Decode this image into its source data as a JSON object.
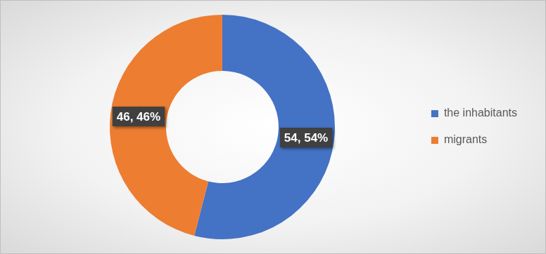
{
  "chart_data": {
    "type": "doughnut",
    "categories": [
      "the inhabitants",
      "migrants"
    ],
    "values": [
      54,
      46
    ],
    "value_labels": [
      "54, 54%",
      "46, 46%"
    ],
    "colors": [
      "#4472c4",
      "#ed7d31"
    ],
    "data_labels": true,
    "legend": "right"
  }
}
